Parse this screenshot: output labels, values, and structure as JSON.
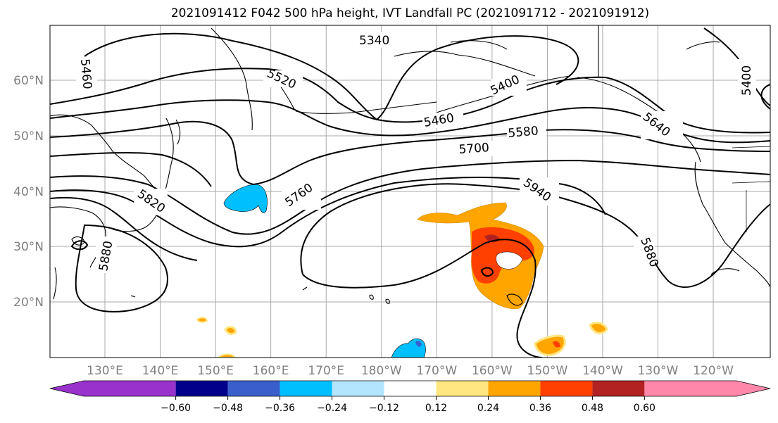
{
  "title": "2021091412 F042 500 hPa height, IVT Landfall PC (2021091712 - 2021091912)",
  "latitudes": [
    {
      "label": "60°N",
      "lat": 60
    },
    {
      "label": "50°N",
      "lat": 50
    },
    {
      "label": "40°N",
      "lat": 40
    },
    {
      "label": "30°N",
      "lat": 30
    },
    {
      "label": "20°N",
      "lat": 20
    }
  ],
  "longitudes": [
    {
      "label": "130°E",
      "lon": 130
    },
    {
      "label": "140°E",
      "lon": 140
    },
    {
      "label": "150°E",
      "lon": 150
    },
    {
      "label": "160°E",
      "lon": 160
    },
    {
      "label": "170°E",
      "lon": 170
    },
    {
      "label": "180°W",
      "lon": 180
    },
    {
      "label": "170°W",
      "lon": 190
    },
    {
      "label": "160°W",
      "lon": 200
    },
    {
      "label": "150°W",
      "lon": 210
    },
    {
      "label": "140°W",
      "lon": 220
    },
    {
      "label": "130°W",
      "lon": 230
    },
    {
      "label": "120°W",
      "lon": 240
    }
  ],
  "contour_labels": [
    "5340",
    "5400",
    "5460",
    "5520",
    "5580",
    "5640",
    "5700",
    "5760",
    "5820",
    "5880",
    "5940"
  ],
  "colorbar": {
    "colors": [
      "#9932cc",
      "#00008b",
      "#3a5fcd",
      "#00bfff",
      "#b3e5ff",
      "#ffffff",
      "#ffe680",
      "#ffa500",
      "#ff4000",
      "#b22222",
      "#ff88aa"
    ],
    "ticks": [
      "−0.60",
      "−0.48",
      "−0.36",
      "−0.24",
      "−0.12",
      "0.12",
      "0.24",
      "0.36",
      "0.48",
      "0.60"
    ]
  }
}
